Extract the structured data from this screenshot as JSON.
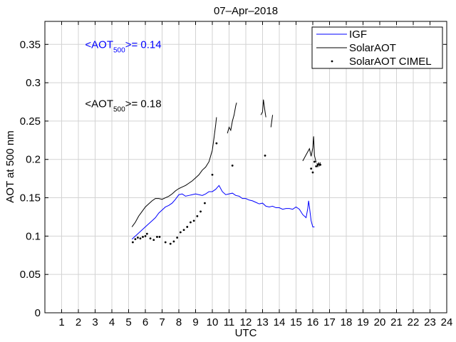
{
  "chart_data": {
    "type": "line",
    "title": "07–Apr–2018",
    "xlabel": "UTC",
    "ylabel": "AOT at 500 nm",
    "xlim": [
      0,
      24
    ],
    "ylim": [
      0,
      0.38
    ],
    "grid": true,
    "x_ticks": [
      1,
      2,
      3,
      4,
      5,
      6,
      7,
      8,
      9,
      10,
      11,
      12,
      13,
      14,
      15,
      16,
      17,
      18,
      19,
      20,
      21,
      22,
      23,
      24
    ],
    "y_ticks": [
      0,
      0.05,
      0.1,
      0.15,
      0.2,
      0.25,
      0.3,
      0.35
    ],
    "y_tick_labels": [
      "0",
      "0.05",
      "0.1",
      "0.15",
      "0.2",
      "0.25",
      "0.3",
      "0.35"
    ],
    "legend_position": "top-right",
    "colors": {
      "igf": "#0000ff",
      "solaraot": "#000000",
      "cimel": "#000000"
    },
    "annotations": [
      {
        "prefix": "<AOT",
        "sub": "500",
        "suffix": ">= 0.14",
        "color": "#0000ff",
        "at_x": 2.4,
        "at_y": 0.345
      },
      {
        "prefix": "<AOT",
        "sub": "500",
        "suffix": ">= 0.18",
        "color": "#000000",
        "at_x": 2.4,
        "at_y": 0.268
      }
    ],
    "series": [
      {
        "name": "IGF",
        "kind": "line",
        "segments": [
          [
            [
              5.2,
              0.096
            ],
            [
              5.5,
              0.102
            ],
            [
              5.8,
              0.108
            ],
            [
              6.1,
              0.114
            ],
            [
              6.4,
              0.12
            ],
            [
              6.6,
              0.124
            ],
            [
              6.8,
              0.13
            ],
            [
              7.0,
              0.134
            ],
            [
              7.2,
              0.138
            ],
            [
              7.4,
              0.14
            ],
            [
              7.6,
              0.143
            ],
            [
              7.8,
              0.148
            ],
            [
              8.0,
              0.154
            ],
            [
              8.2,
              0.155
            ],
            [
              8.4,
              0.152
            ],
            [
              8.6,
              0.153
            ],
            [
              8.8,
              0.154
            ],
            [
              9.0,
              0.155
            ],
            [
              9.2,
              0.154
            ],
            [
              9.4,
              0.153
            ],
            [
              9.6,
              0.155
            ],
            [
              9.8,
              0.158
            ],
            [
              10.0,
              0.158
            ],
            [
              10.2,
              0.161
            ],
            [
              10.4,
              0.166
            ],
            [
              10.6,
              0.158
            ],
            [
              10.8,
              0.154
            ],
            [
              11.0,
              0.155
            ],
            [
              11.2,
              0.156
            ],
            [
              11.4,
              0.153
            ],
            [
              11.6,
              0.152
            ],
            [
              11.8,
              0.149
            ],
            [
              12.0,
              0.149
            ],
            [
              12.2,
              0.147
            ],
            [
              12.4,
              0.146
            ],
            [
              12.6,
              0.144
            ],
            [
              12.8,
              0.142
            ],
            [
              13.0,
              0.143
            ],
            [
              13.2,
              0.139
            ],
            [
              13.4,
              0.138
            ],
            [
              13.6,
              0.139
            ],
            [
              13.8,
              0.137
            ],
            [
              14.0,
              0.137
            ],
            [
              14.2,
              0.135
            ],
            [
              14.4,
              0.136
            ],
            [
              14.6,
              0.136
            ],
            [
              14.8,
              0.135
            ],
            [
              15.0,
              0.138
            ],
            [
              15.2,
              0.135
            ],
            [
              15.4,
              0.128
            ],
            [
              15.6,
              0.124
            ],
            [
              15.7,
              0.136
            ],
            [
              15.75,
              0.146
            ],
            [
              15.8,
              0.138
            ],
            [
              15.9,
              0.12
            ],
            [
              16.0,
              0.112
            ],
            [
              16.1,
              0.112
            ]
          ]
        ]
      },
      {
        "name": "SolarAOT",
        "kind": "line",
        "segments": [
          [
            [
              5.2,
              0.112
            ],
            [
              5.4,
              0.118
            ],
            [
              5.6,
              0.126
            ],
            [
              5.8,
              0.132
            ],
            [
              6.0,
              0.138
            ],
            [
              6.2,
              0.142
            ],
            [
              6.4,
              0.146
            ],
            [
              6.6,
              0.149
            ],
            [
              6.8,
              0.149
            ],
            [
              7.0,
              0.148
            ],
            [
              7.2,
              0.15
            ],
            [
              7.4,
              0.152
            ],
            [
              7.6,
              0.155
            ],
            [
              7.8,
              0.159
            ],
            [
              8.0,
              0.162
            ],
            [
              8.2,
              0.164
            ],
            [
              8.4,
              0.166
            ],
            [
              8.6,
              0.169
            ],
            [
              8.8,
              0.172
            ],
            [
              9.0,
              0.176
            ],
            [
              9.2,
              0.18
            ],
            [
              9.4,
              0.186
            ],
            [
              9.6,
              0.19
            ],
            [
              9.8,
              0.197
            ],
            [
              10.0,
              0.212
            ],
            [
              10.1,
              0.228
            ],
            [
              10.2,
              0.245
            ],
            [
              10.25,
              0.255
            ]
          ],
          [
            [
              10.9,
              0.234
            ],
            [
              11.0,
              0.242
            ],
            [
              11.1,
              0.238
            ],
            [
              11.2,
              0.25
            ],
            [
              11.3,
              0.258
            ],
            [
              11.4,
              0.27
            ],
            [
              11.45,
              0.274
            ]
          ],
          [
            [
              12.9,
              0.258
            ],
            [
              13.0,
              0.262
            ],
            [
              13.05,
              0.278
            ],
            [
              13.1,
              0.27
            ],
            [
              13.15,
              0.262
            ],
            [
              13.2,
              0.255
            ]
          ],
          [
            [
              13.5,
              0.242
            ],
            [
              13.55,
              0.25
            ],
            [
              13.6,
              0.258
            ]
          ],
          [
            [
              15.4,
              0.198
            ],
            [
              15.5,
              0.202
            ],
            [
              15.6,
              0.206
            ],
            [
              15.7,
              0.21
            ],
            [
              15.8,
              0.214
            ],
            [
              15.9,
              0.204
            ],
            [
              16.0,
              0.215
            ],
            [
              16.05,
              0.23
            ],
            [
              16.1,
              0.205
            ],
            [
              16.2,
              0.196
            ]
          ],
          [
            [
              16.25,
              0.195
            ],
            [
              16.3,
              0.19
            ],
            [
              16.35,
              0.196
            ],
            [
              16.4,
              0.192
            ],
            [
              16.45,
              0.196
            ]
          ]
        ]
      },
      {
        "name": "SolarAOT CIMEL",
        "kind": "scatter",
        "points": [
          [
            5.25,
            0.092
          ],
          [
            5.4,
            0.096
          ],
          [
            5.55,
            0.098
          ],
          [
            5.7,
            0.097
          ],
          [
            5.85,
            0.099
          ],
          [
            6.0,
            0.1
          ],
          [
            6.1,
            0.103
          ],
          [
            6.3,
            0.097
          ],
          [
            6.5,
            0.095
          ],
          [
            6.7,
            0.099
          ],
          [
            6.85,
            0.099
          ],
          [
            7.2,
            0.092
          ],
          [
            7.5,
            0.09
          ],
          [
            7.7,
            0.093
          ],
          [
            7.9,
            0.098
          ],
          [
            8.1,
            0.105
          ],
          [
            8.3,
            0.108
          ],
          [
            8.5,
            0.112
          ],
          [
            8.7,
            0.118
          ],
          [
            8.9,
            0.12
          ],
          [
            9.1,
            0.126
          ],
          [
            9.3,
            0.132
          ],
          [
            9.55,
            0.143
          ],
          [
            10.0,
            0.18
          ],
          [
            10.25,
            0.221
          ],
          [
            11.2,
            0.192
          ],
          [
            13.15,
            0.205
          ],
          [
            15.9,
            0.188
          ],
          [
            16.0,
            0.183
          ],
          [
            16.1,
            0.197
          ],
          [
            16.2,
            0.191
          ],
          [
            16.3,
            0.193
          ],
          [
            16.45,
            0.193
          ]
        ]
      }
    ]
  }
}
